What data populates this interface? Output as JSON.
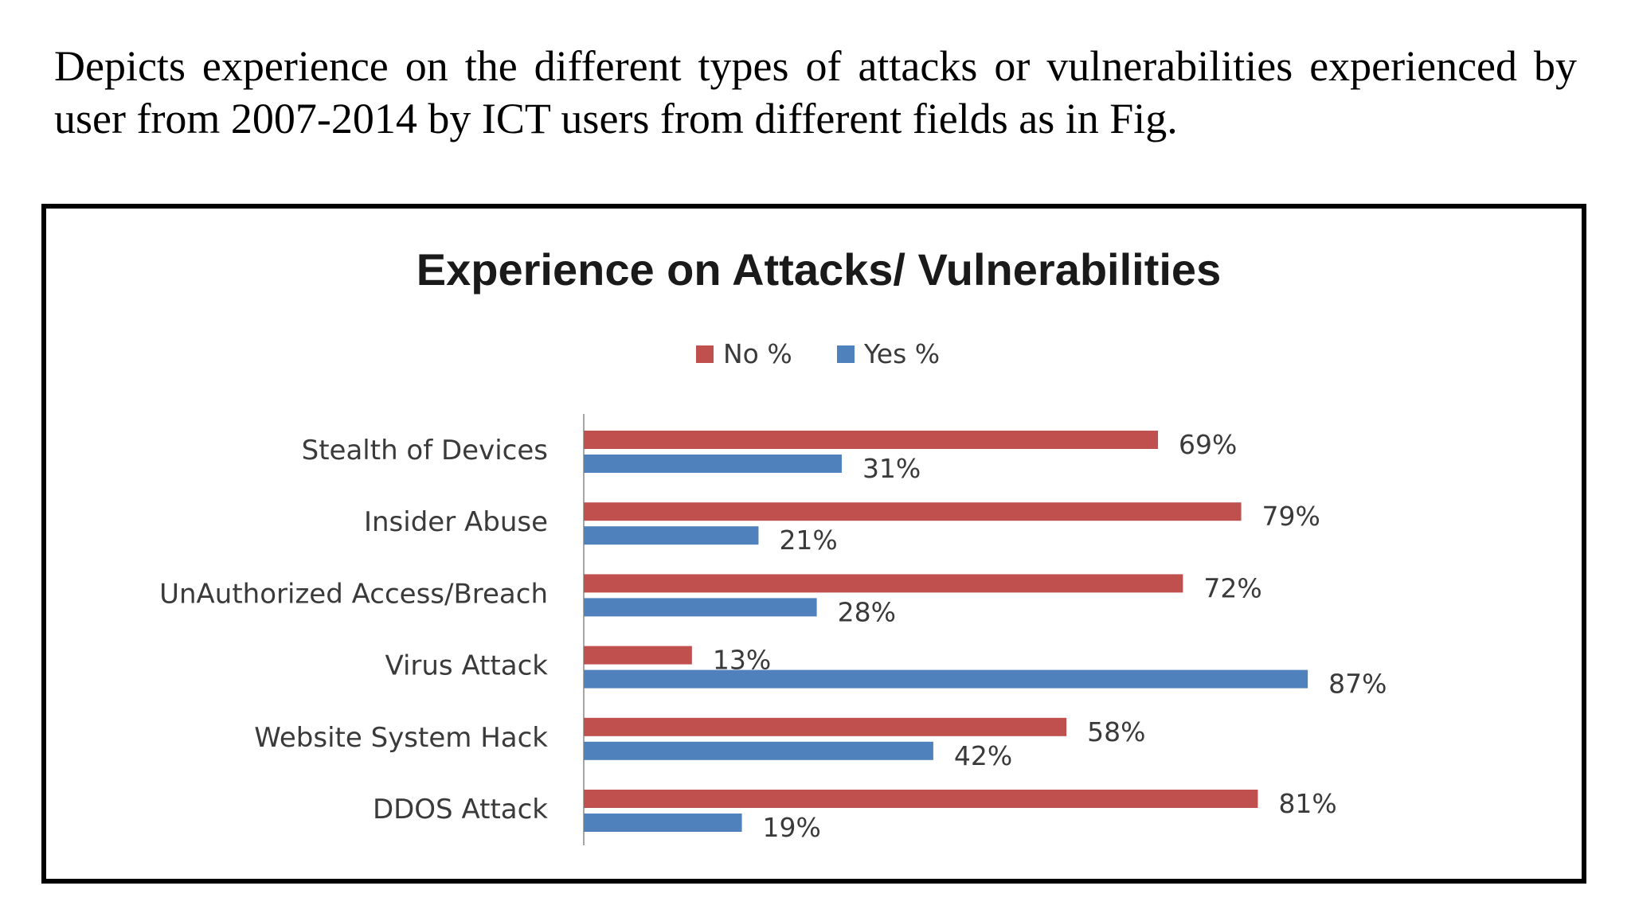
{
  "intro_text": "Depicts experience on the different types of attacks or vulnerabilities experienced by user from 2007-2014 by ICT users from different fields as in Fig.",
  "colors": {
    "no": "#c0504d",
    "yes": "#4f81bd",
    "axis": "#a6a6a6",
    "text": "#3a3a3a",
    "frame": "#000000"
  },
  "chart_data": {
    "type": "bar",
    "orientation": "horizontal",
    "title": "Experience on Attacks/ Vulnerabilities",
    "legend_position": "top",
    "categories": [
      "Stealth of Devices",
      "Insider Abuse",
      "UnAuthorized Access/Breach",
      "Virus Attack",
      "Website System Hack",
      "DDOS Attack"
    ],
    "series": [
      {
        "name": "No %",
        "values": [
          69,
          79,
          72,
          13,
          58,
          81
        ],
        "labels": [
          "69%",
          "79%",
          "72%",
          "13%",
          "58%",
          "81%"
        ]
      },
      {
        "name": "Yes %",
        "values": [
          31,
          21,
          28,
          87,
          42,
          19
        ],
        "labels": [
          "31%",
          "21%",
          "28%",
          "87%",
          "42%",
          "19%"
        ]
      }
    ],
    "xlim": [
      0,
      100
    ],
    "grid": false,
    "value_axis_shown": false
  }
}
